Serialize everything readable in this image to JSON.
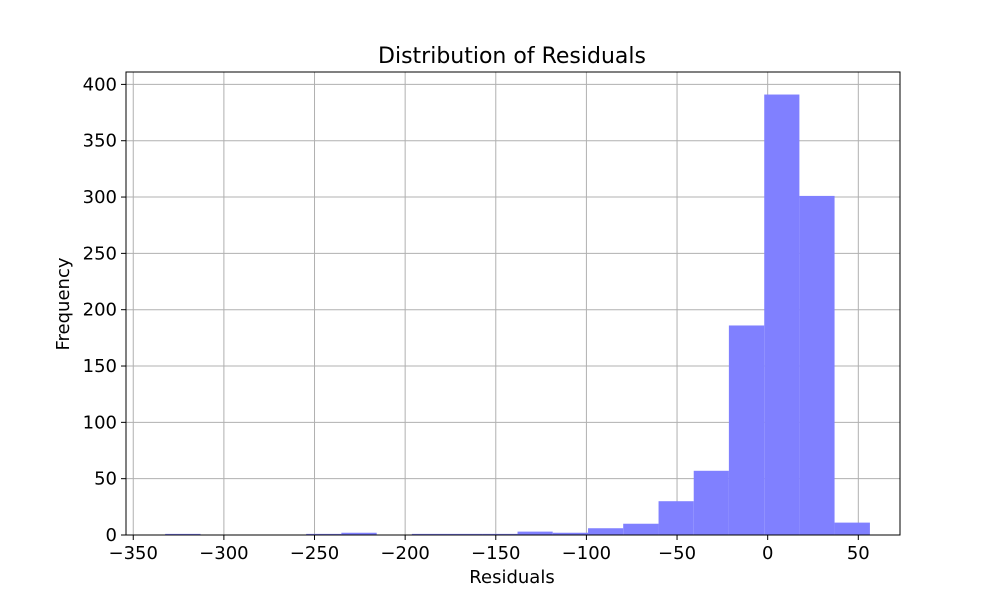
{
  "chart_data": {
    "type": "bar",
    "title": "Distribution of Residuals",
    "xlabel": "Residuals",
    "ylabel": "Frequency",
    "xlim": [
      -354,
      73
    ],
    "ylim": [
      0,
      411
    ],
    "xticks": [
      -350,
      -300,
      -250,
      -200,
      -150,
      -100,
      -50,
      0,
      50
    ],
    "xtick_labels": [
      "−350",
      "−300",
      "−250",
      "−200",
      "−150",
      "−100",
      "−50",
      "0",
      "50"
    ],
    "yticks": [
      0,
      50,
      100,
      150,
      200,
      250,
      300,
      350,
      400
    ],
    "ytick_labels": [
      "0",
      "50",
      "100",
      "150",
      "200",
      "250",
      "300",
      "350",
      "400"
    ],
    "grid": true,
    "color": "#8080ff",
    "bins": [
      {
        "x0": -332.4,
        "x1": -312.9,
        "count": 1
      },
      {
        "x0": -312.9,
        "x1": -293.5,
        "count": 0
      },
      {
        "x0": -293.5,
        "x1": -274.1,
        "count": 0
      },
      {
        "x0": -274.1,
        "x1": -254.6,
        "count": 0
      },
      {
        "x0": -254.6,
        "x1": -235.2,
        "count": 1
      },
      {
        "x0": -235.2,
        "x1": -215.7,
        "count": 2
      },
      {
        "x0": -215.7,
        "x1": -196.3,
        "count": 0
      },
      {
        "x0": -196.3,
        "x1": -176.9,
        "count": 1
      },
      {
        "x0": -176.9,
        "x1": -157.4,
        "count": 1
      },
      {
        "x0": -157.4,
        "x1": -138.0,
        "count": 1
      },
      {
        "x0": -138.0,
        "x1": -118.6,
        "count": 3
      },
      {
        "x0": -118.6,
        "x1": -99.1,
        "count": 2
      },
      {
        "x0": -99.1,
        "x1": -79.7,
        "count": 6
      },
      {
        "x0": -79.7,
        "x1": -60.2,
        "count": 10
      },
      {
        "x0": -60.2,
        "x1": -40.8,
        "count": 30
      },
      {
        "x0": -40.8,
        "x1": -21.4,
        "count": 57
      },
      {
        "x0": -21.4,
        "x1": -1.9,
        "count": 186
      },
      {
        "x0": -1.9,
        "x1": 17.5,
        "count": 391
      },
      {
        "x0": 17.5,
        "x1": 36.9,
        "count": 301
      },
      {
        "x0": 36.9,
        "x1": 56.4,
        "count": 11
      }
    ]
  }
}
